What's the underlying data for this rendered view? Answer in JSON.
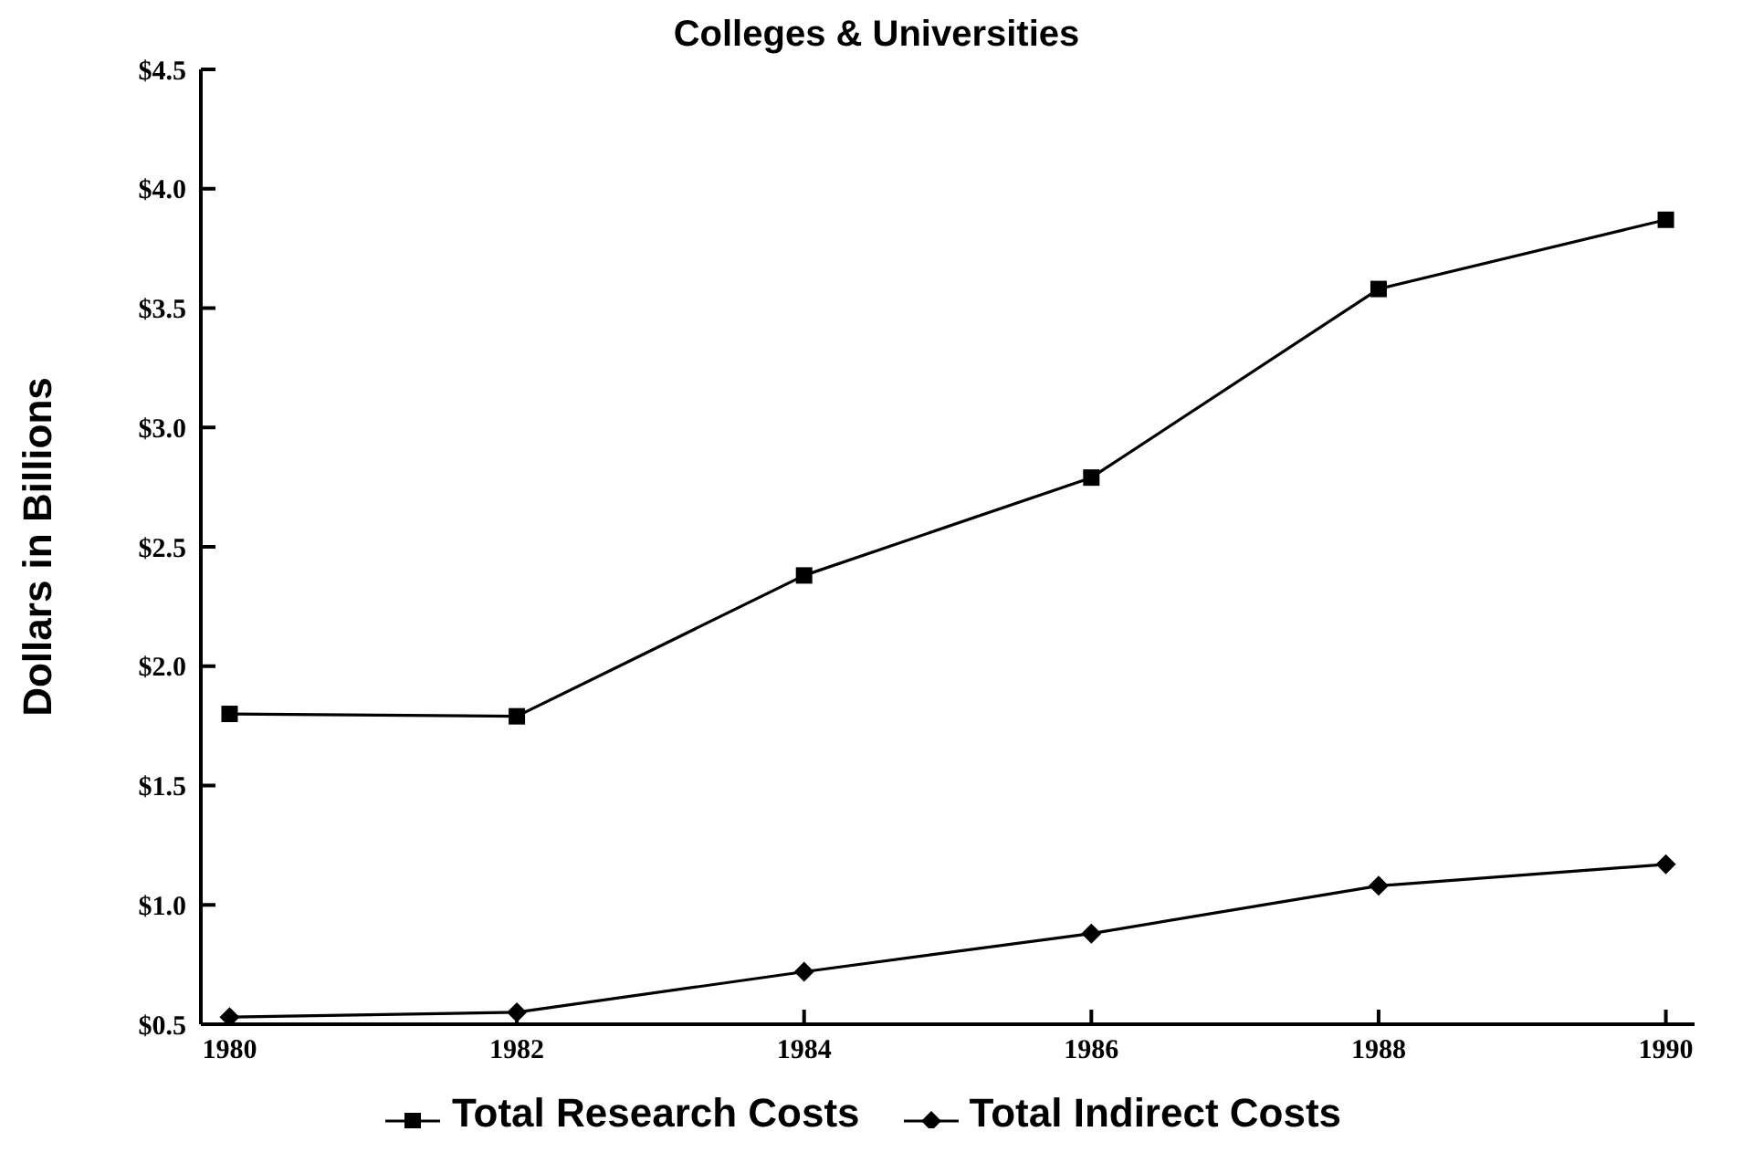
{
  "chart_data": {
    "type": "line",
    "title": "Colleges & Universities",
    "ylabel": "Dollars in Billions",
    "x": [
      1980,
      1982,
      1984,
      1986,
      1988,
      1990
    ],
    "xlim": [
      1979.8,
      1990.2
    ],
    "xticks": [
      1980,
      1982,
      1984,
      1986,
      1988,
      1990
    ],
    "ylim": [
      0.5,
      4.5
    ],
    "yticks": [
      {
        "value": 0.5,
        "label": "$0.5"
      },
      {
        "value": 1.0,
        "label": "$1.0"
      },
      {
        "value": 1.5,
        "label": "$1.5"
      },
      {
        "value": 2.0,
        "label": "$2.0"
      },
      {
        "value": 2.5,
        "label": "$2.5"
      },
      {
        "value": 3.0,
        "label": "$3.0"
      },
      {
        "value": 3.5,
        "label": "$3.5"
      },
      {
        "value": 4.0,
        "label": "$4.0"
      },
      {
        "value": 4.5,
        "label": "$4.5"
      }
    ],
    "series": [
      {
        "name": "Total Research Costs",
        "color": "#000000",
        "marker": "square",
        "values": [
          1.8,
          1.79,
          2.38,
          2.79,
          3.58,
          3.87
        ]
      },
      {
        "name": "Total Indirect Costs",
        "color": "#000000",
        "marker": "diamond",
        "values": [
          0.53,
          0.55,
          0.72,
          0.88,
          1.08,
          1.17
        ]
      }
    ],
    "grid": false,
    "legend": "bottom",
    "line_style": "solid"
  }
}
